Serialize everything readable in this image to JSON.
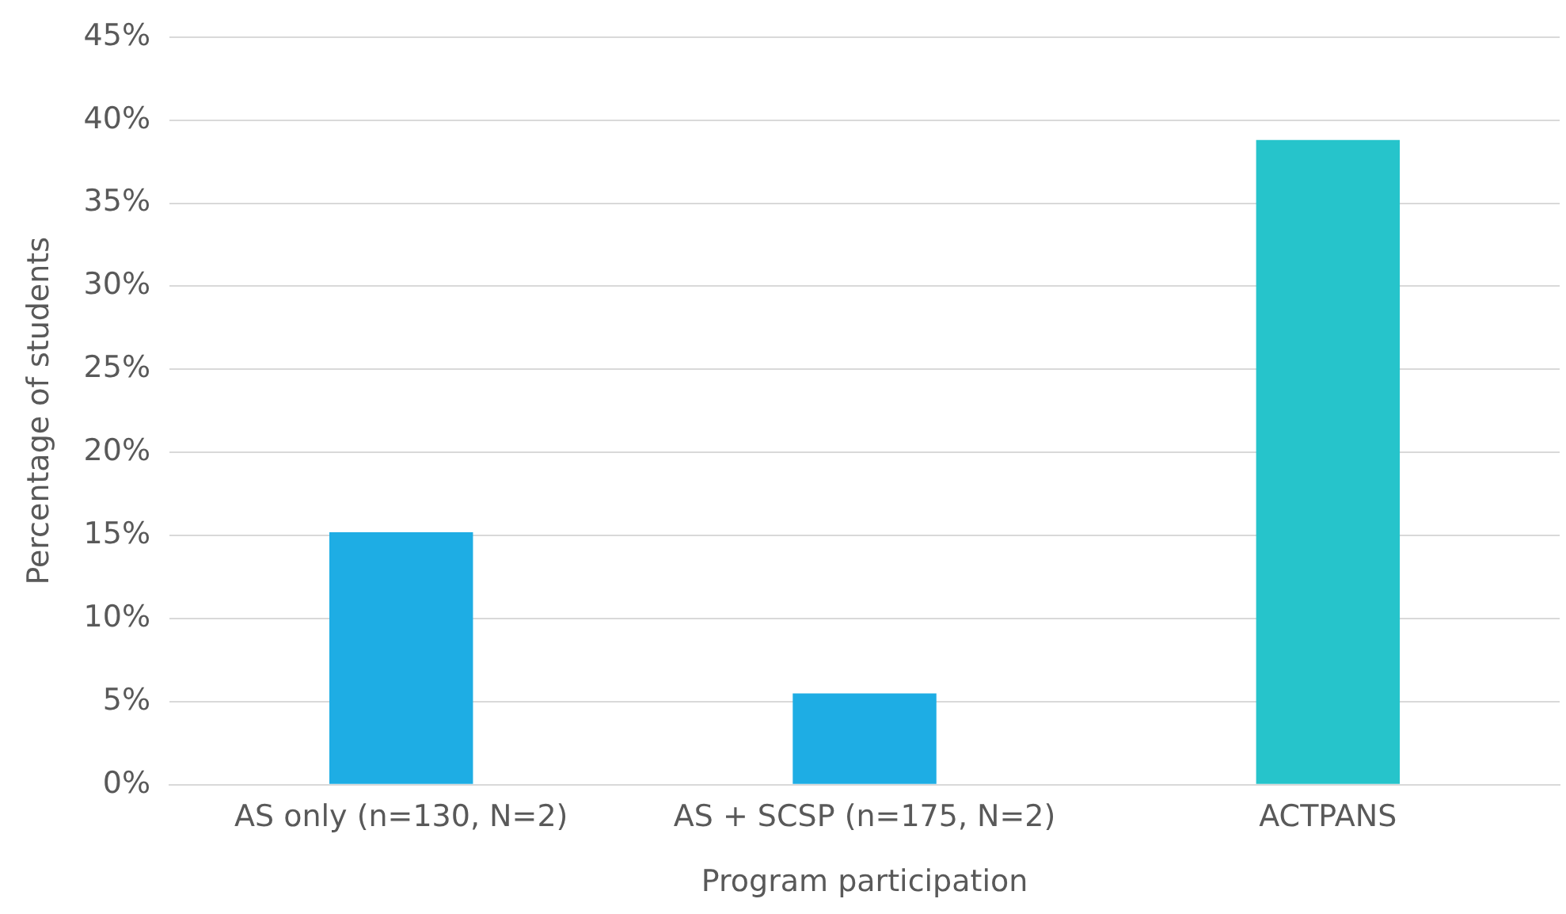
{
  "chart_data": {
    "type": "bar",
    "xlabel": "Program participation",
    "ylabel": "Percentage of students",
    "categories": [
      "AS only (n=130, N=2)",
      "AS + SCSP (n=175, N=2)",
      "ACTPANS"
    ],
    "values": [
      15.2,
      5.5,
      38.8
    ],
    "colors": [
      "#1eade4",
      "#1eade4",
      "#26c4cb"
    ],
    "ylim": [
      0,
      45
    ],
    "yticks": [
      {
        "value": 0,
        "label": "0%"
      },
      {
        "value": 5,
        "label": "5%"
      },
      {
        "value": 10,
        "label": "10%"
      },
      {
        "value": 15,
        "label": "15%"
      },
      {
        "value": 20,
        "label": "20%"
      },
      {
        "value": 25,
        "label": "25%"
      },
      {
        "value": 30,
        "label": "30%"
      },
      {
        "value": 35,
        "label": "35%"
      },
      {
        "value": 40,
        "label": "40%"
      },
      {
        "value": 45,
        "label": "45%"
      }
    ],
    "grid": "y",
    "legend": false
  }
}
